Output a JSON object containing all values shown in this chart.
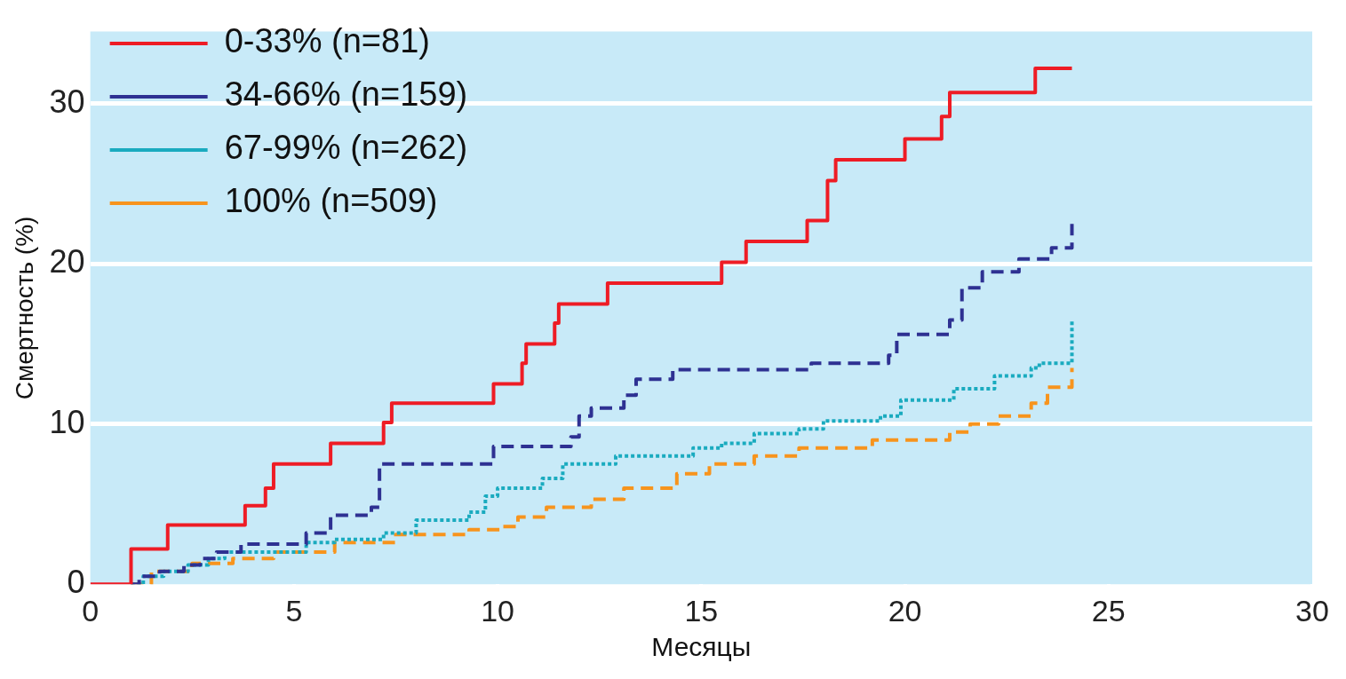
{
  "chart_data": {
    "type": "step",
    "xlabel": "Месяцы",
    "ylabel": "Смертность (%)",
    "xlim": [
      0,
      30
    ],
    "xticks": [
      0,
      5,
      10,
      15,
      20,
      25,
      30
    ],
    "ylim": [
      0,
      34.5
    ],
    "yticks": [
      0,
      10,
      20,
      30
    ],
    "grid": "y",
    "legend": "top left",
    "series": [
      {
        "name": "0-33% (n=81)",
        "color": "#ee1c25",
        "line_style": "solid",
        "x": [
          0,
          1,
          1.9,
          3.8,
          4.3,
          4.5,
          5.9,
          7.2,
          7.4,
          9.9,
          10.6,
          10.7,
          11.4,
          11.5,
          12.7,
          15.5,
          16.1,
          17.6,
          18.1,
          18.3,
          20,
          20.9,
          21.1,
          23.2,
          24.1
        ],
        "values": [
          0,
          2.2,
          3.7,
          4.9,
          6,
          7.5,
          8.8,
          10.1,
          11.3,
          12.5,
          13.8,
          15,
          16.3,
          17.5,
          18.8,
          20.1,
          21.4,
          22.7,
          25.2,
          26.5,
          27.8,
          29.2,
          30.7,
          32.2,
          32.2
        ]
      },
      {
        "name": "34-66% (n=159)",
        "color": "#2e3192",
        "line_style": "dashed",
        "x": [
          1,
          1.2,
          1.7,
          2.3,
          2.7,
          3.1,
          3.7,
          5.3,
          5.9,
          6.9,
          7.1,
          9.9,
          11.8,
          12,
          12.3,
          13.1,
          13.4,
          14.3,
          17.7,
          19.6,
          19.8,
          21.1,
          21.4,
          21.9,
          22.8,
          23.6,
          24.1
        ],
        "values": [
          0,
          0.5,
          0.8,
          1.2,
          1.6,
          2,
          2.5,
          3.2,
          4.3,
          4.8,
          7.5,
          8.6,
          9.2,
          10.5,
          11,
          11.8,
          12.8,
          13.4,
          13.8,
          14.3,
          15.6,
          16.5,
          18.5,
          19.5,
          20.3,
          21,
          22.5
        ]
      },
      {
        "name": "67-99% (n=262)",
        "color": "#1aabbf",
        "line_style": "dotted",
        "x": [
          1,
          1.3,
          1.8,
          2.4,
          2.9,
          3.3,
          5.3,
          6,
          7.2,
          8,
          9.3,
          9.7,
          10,
          11.1,
          11.6,
          12.9,
          14.8,
          15.5,
          16.3,
          17.4,
          18,
          19.4,
          19.9,
          21.2,
          22.2,
          23.1,
          23.3,
          24.1
        ],
        "values": [
          0,
          0.5,
          0.8,
          1.2,
          1.6,
          2,
          2.6,
          2.8,
          3.2,
          4,
          4.5,
          5.5,
          6,
          6.6,
          7.5,
          8,
          8.5,
          8.8,
          9.4,
          9.7,
          10.2,
          10.5,
          11.5,
          12.2,
          13,
          13.5,
          13.8,
          16.5
        ]
      },
      {
        "name": "100% (n=509)",
        "color": "#f7941d",
        "line_style": "dashed",
        "x": [
          1,
          1.5,
          2.5,
          3.5,
          4.5,
          6,
          7.5,
          9.3,
          10.1,
          10.5,
          11.2,
          12.3,
          13.1,
          14.4,
          15.2,
          16.3,
          17.4,
          19.2,
          21.1,
          21.6,
          22.3,
          23.1,
          23.5,
          24.1
        ],
        "values": [
          0,
          0.8,
          1.3,
          1.6,
          2,
          2.6,
          3.1,
          3.4,
          3.6,
          4.2,
          4.8,
          5.3,
          6,
          6.9,
          7.5,
          8,
          8.5,
          9,
          9.5,
          10,
          10.5,
          11.3,
          12.3,
          13.5
        ]
      }
    ]
  }
}
